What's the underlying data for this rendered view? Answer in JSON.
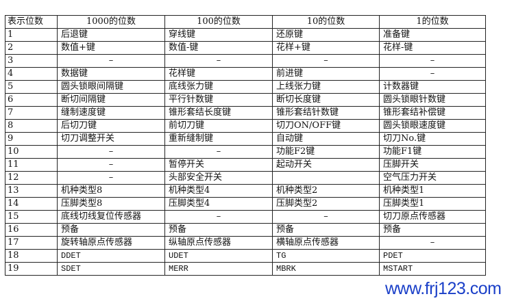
{
  "table": {
    "headers": [
      "表示位数",
      "1000的位数",
      "100的位数",
      "10的位数",
      "1的位数"
    ],
    "rows": [
      [
        "1",
        "后退键",
        "穿线键",
        "还原键",
        "准备键"
      ],
      [
        "2",
        "数值+键",
        "数值-键",
        "花样+键",
        "花样-键"
      ],
      [
        "3",
        "-",
        "-",
        "-",
        "-"
      ],
      [
        "4",
        "数据键",
        "花样键",
        "前进键",
        "-"
      ],
      [
        "5",
        "圆头锁眼间隔键",
        "底线张力键",
        "上线张力键",
        "计数器键"
      ],
      [
        "6",
        "断切间隔键",
        "平行针数键",
        "断切长度键",
        "圆头锁眼针数键"
      ],
      [
        "7",
        "缝制速度键",
        "锥形套结长度键",
        "锥形套结针数键",
        "锥形套结补偿键"
      ],
      [
        "8",
        "后切刀键",
        "前切刀键",
        "切刀ON/OFF键",
        "圆头锁眼速度键"
      ],
      [
        "9",
        "切刀调整开关",
        "重新缝制键",
        "自动键",
        "切刀No.键"
      ],
      [
        "10",
        "-",
        "-",
        "功能F2键",
        "功能F1键"
      ],
      [
        "11",
        "-",
        "暂停开关",
        "起动开关",
        "压脚开关"
      ],
      [
        "12",
        "-",
        "头部安全开关",
        "",
        "空气压力开关"
      ],
      [
        "13",
        "机种类型8",
        "机种类型4",
        "机种类型2",
        "机种类型1"
      ],
      [
        "14",
        "压脚类型8",
        "压脚类型4",
        "压脚类型2",
        "压脚类型1"
      ],
      [
        "15",
        "底线切线复位传感器",
        "-",
        "-",
        "切刀原点传感器"
      ],
      [
        "16",
        "预备",
        "预备",
        "预备",
        "预备"
      ],
      [
        "17",
        "旋转轴原点传感器",
        "纵轴原点传感器",
        "横轴原点传感器",
        "-"
      ],
      [
        "18",
        "DDET",
        "UDET",
        "TG",
        "PDET"
      ],
      [
        "19",
        "SDET",
        "MERR",
        "MBRK",
        "MSTART"
      ]
    ]
  },
  "watermark": "www.frj123.com",
  "colors": {
    "watermark": "#1a3fc8",
    "border": "#222222"
  }
}
